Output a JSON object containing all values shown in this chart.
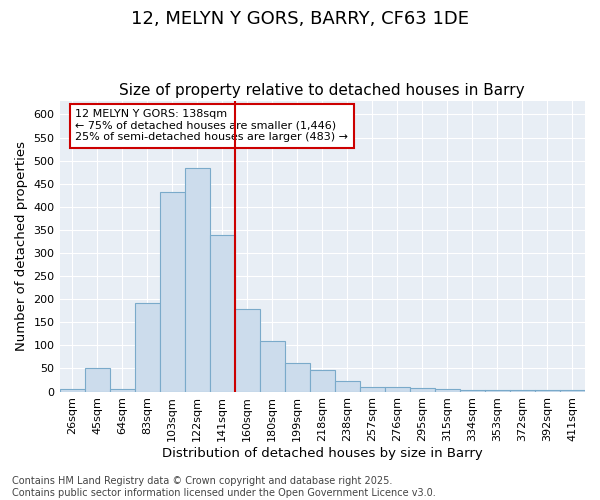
{
  "title1": "12, MELYN Y GORS, BARRY, CF63 1DE",
  "title2": "Size of property relative to detached houses in Barry",
  "xlabel": "Distribution of detached houses by size in Barry",
  "ylabel": "Number of detached properties",
  "categories": [
    "26sqm",
    "45sqm",
    "64sqm",
    "83sqm",
    "103sqm",
    "122sqm",
    "141sqm",
    "160sqm",
    "180sqm",
    "199sqm",
    "218sqm",
    "238sqm",
    "257sqm",
    "276sqm",
    "295sqm",
    "315sqm",
    "334sqm",
    "353sqm",
    "372sqm",
    "392sqm",
    "411sqm"
  ],
  "values": [
    5,
    52,
    5,
    192,
    432,
    483,
    340,
    178,
    110,
    62,
    47,
    23,
    11,
    11,
    7,
    6,
    4,
    4,
    4,
    3,
    4
  ],
  "bar_color": "#ccdcec",
  "bar_edge_color": "#7aaaca",
  "vline_x": 6.5,
  "vline_color": "#cc0000",
  "ylim": [
    0,
    630
  ],
  "yticks": [
    0,
    50,
    100,
    150,
    200,
    250,
    300,
    350,
    400,
    450,
    500,
    550,
    600
  ],
  "annotation_text": "12 MELYN Y GORS: 138sqm\n← 75% of detached houses are smaller (1,446)\n25% of semi-detached houses are larger (483) →",
  "annotation_box_color": "#ffffff",
  "annotation_box_edge": "#cc0000",
  "footer_text": "Contains HM Land Registry data © Crown copyright and database right 2025.\nContains public sector information licensed under the Open Government Licence v3.0.",
  "background_color": "#ffffff",
  "plot_bg_color": "#e8eef5",
  "grid_color": "#ffffff",
  "title_fontsize": 13,
  "subtitle_fontsize": 11,
  "axis_label_fontsize": 9.5,
  "tick_fontsize": 8,
  "footer_fontsize": 7
}
